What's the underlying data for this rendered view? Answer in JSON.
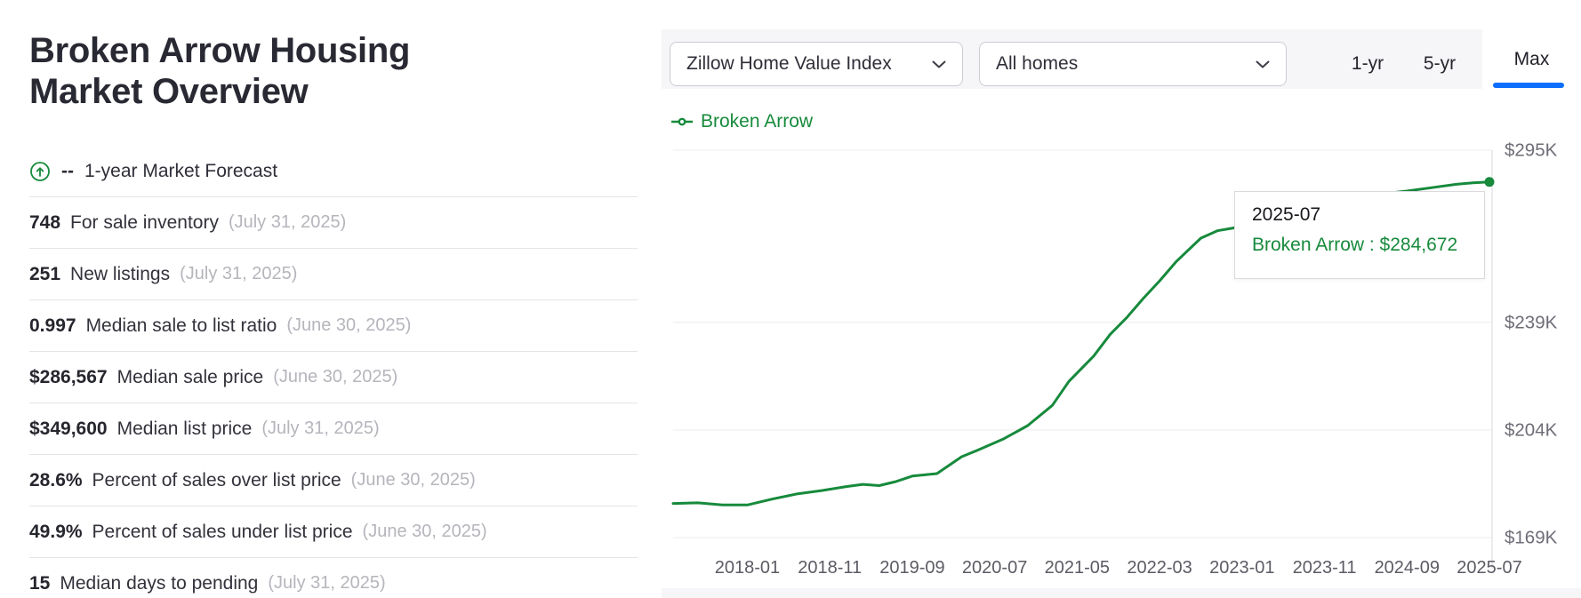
{
  "page": {
    "title": "Broken Arrow Housing Market Overview",
    "title_lines": [
      "Broken Arrow Housing",
      "Market Overview"
    ]
  },
  "forecast": {
    "icon": "circle-up-arrow-icon",
    "value": "--",
    "label": "1-year Market Forecast"
  },
  "stats": [
    {
      "value": "748",
      "label": "For sale inventory",
      "date": "(July 31, 2025)"
    },
    {
      "value": "251",
      "label": "New listings",
      "date": "(July 31, 2025)"
    },
    {
      "value": "0.997",
      "label": "Median sale to list ratio",
      "date": "(June 30, 2025)"
    },
    {
      "value": "$286,567",
      "label": "Median sale price",
      "date": "(June 30, 2025)"
    },
    {
      "value": "$349,600",
      "label": "Median list price",
      "date": "(July 31, 2025)"
    },
    {
      "value": "28.6%",
      "label": "Percent of sales over list price",
      "date": "(June 30, 2025)"
    },
    {
      "value": "49.9%",
      "label": "Percent of sales under list price",
      "date": "(June 30, 2025)"
    },
    {
      "value": "15",
      "label": "Median days to pending",
      "date": "(July 31, 2025)"
    }
  ],
  "toolbar": {
    "metric_dropdown": {
      "value": "Zillow Home Value Index"
    },
    "homes_dropdown": {
      "value": "All homes"
    },
    "tabs": [
      {
        "label": "1-yr",
        "active": false
      },
      {
        "label": "5-yr",
        "active": false
      },
      {
        "label": "Max",
        "active": true
      }
    ]
  },
  "legend": {
    "label": "Broken Arrow"
  },
  "tooltip": {
    "date": "2025-07",
    "series": "Broken Arrow",
    "value": "$284,672",
    "text": "Broken Arrow : $284,672"
  },
  "colors": {
    "accent_green": "#178a3c",
    "accent_blue": "#0d6efd",
    "dark_text": "#2b2b33",
    "muted_date_text": "#b5b5bc",
    "toolbar_bg": "#f6f6f8"
  },
  "chart_data": {
    "type": "line",
    "title": "",
    "xlabel": "",
    "ylabel": "",
    "grid": true,
    "legend_position": "top-left",
    "ylim": [
      169000,
      295000
    ],
    "y_ticks": [
      {
        "label": "$295K",
        "value": 295000
      },
      {
        "label": "$239K",
        "value": 239000
      },
      {
        "label": "$204K",
        "value": 204000
      },
      {
        "label": "$169K",
        "value": 169000
      }
    ],
    "x_tick_labels": [
      "2018-01",
      "2018-11",
      "2019-09",
      "2020-07",
      "2021-05",
      "2022-03",
      "2023-01",
      "2023-11",
      "2024-09",
      "2025-07"
    ],
    "x_range": [
      "2017-04",
      "2025-07"
    ],
    "series": [
      {
        "name": "Broken Arrow",
        "dates": [
          "2017-04",
          "2017-07",
          "2017-10",
          "2018-01",
          "2018-04",
          "2018-07",
          "2018-10",
          "2019-01",
          "2019-03",
          "2019-05",
          "2019-07",
          "2019-09",
          "2019-12",
          "2020-03",
          "2020-05",
          "2020-08",
          "2020-11",
          "2021-02",
          "2021-04",
          "2021-07",
          "2021-09",
          "2021-11",
          "2022-01",
          "2022-03",
          "2022-05",
          "2022-08",
          "2022-10",
          "2022-12",
          "2023-03",
          "2023-06",
          "2023-09",
          "2023-12",
          "2024-03",
          "2024-06",
          "2024-09",
          "2024-12",
          "2025-03",
          "2025-05",
          "2025-07"
        ],
        "values": [
          180100,
          180300,
          179600,
          179600,
          181500,
          183200,
          184300,
          185600,
          186300,
          185900,
          187200,
          189000,
          189800,
          195300,
          197500,
          201000,
          205400,
          212000,
          219800,
          228000,
          235100,
          240500,
          246700,
          252500,
          258700,
          266400,
          268800,
          269700,
          271200,
          273500,
          276000,
          278000,
          279500,
          280800,
          281700,
          282800,
          283900,
          284400,
          284672
        ]
      }
    ],
    "last_point": {
      "date": "2025-07",
      "value": 284672,
      "formatted": "$284,672"
    }
  }
}
